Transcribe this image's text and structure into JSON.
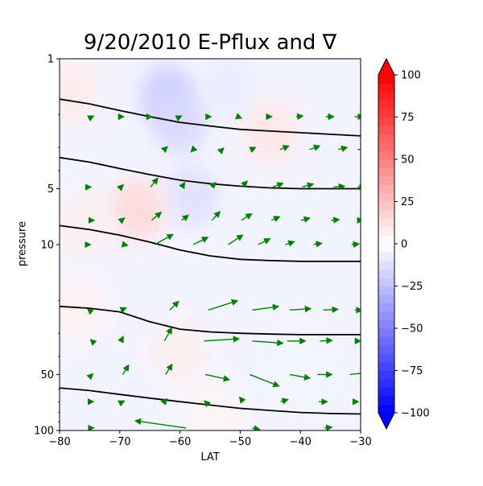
{
  "chart_data": {
    "type": "contour",
    "title": "9/20/2010 E-Pflux and ∇",
    "xlabel": "LAT",
    "ylabel": "pressure",
    "xlim": [
      -80,
      -30
    ],
    "ylim": [
      100,
      1
    ],
    "yscale": "log",
    "x_ticks": [
      -80,
      -70,
      -60,
      -50,
      -40,
      -30
    ],
    "x_tick_labels": [
      "−80",
      "−70",
      "−60",
      "−50",
      "−40",
      "−30"
    ],
    "y_ticks": [
      1,
      5,
      10,
      50,
      100
    ],
    "y_tick_labels": [
      "1",
      "5",
      "10",
      "50",
      "100"
    ],
    "colorbar": {
      "colormap": "bwr",
      "min": -100,
      "max": 100,
      "extend": "both",
      "ticks": [
        -100,
        -75,
        -50,
        -25,
        0,
        25,
        50,
        75,
        100
      ],
      "tick_labels": [
        "−100",
        "−75",
        "−50",
        "−25",
        "0",
        "25",
        "50",
        "75",
        "100"
      ]
    },
    "contour_field": [
      {
        "lat": -78,
        "p": 1.5,
        "value": 8
      },
      {
        "lat": -62,
        "p": 1.6,
        "value": -20
      },
      {
        "lat": -60,
        "p": 2.2,
        "value": -15
      },
      {
        "lat": -52,
        "p": 1.4,
        "value": -8
      },
      {
        "lat": -45,
        "p": 2.5,
        "value": 10
      },
      {
        "lat": -58,
        "p": 5.5,
        "value": -12
      },
      {
        "lat": -67,
        "p": 6.5,
        "value": 15
      },
      {
        "lat": -76,
        "p": 8.0,
        "value": 6
      },
      {
        "lat": -77,
        "p": 22,
        "value": 5
      },
      {
        "lat": -60,
        "p": 38,
        "value": 6
      },
      {
        "lat": -40,
        "p": 45,
        "value": -4
      },
      {
        "lat": -55,
        "p": 80,
        "value": 4
      }
    ],
    "contour_lines": [
      {
        "lat": [
          -80,
          -75,
          -70,
          -65,
          -60,
          -55,
          -50,
          -45,
          -40,
          -35,
          -30
        ],
        "p": [
          1.65,
          1.75,
          1.9,
          2.05,
          2.2,
          2.3,
          2.4,
          2.45,
          2.5,
          2.55,
          2.6
        ]
      },
      {
        "lat": [
          -80,
          -75,
          -70,
          -65,
          -60,
          -55,
          -50,
          -45,
          -40,
          -35,
          -30
        ],
        "p": [
          3.4,
          3.6,
          3.9,
          4.2,
          4.5,
          4.7,
          4.85,
          4.95,
          5.0,
          5.0,
          5.0
        ]
      },
      {
        "lat": [
          -80,
          -75,
          -70,
          -65,
          -60,
          -55,
          -50,
          -45,
          -40,
          -35,
          -30
        ],
        "p": [
          7.9,
          8.3,
          8.9,
          9.7,
          10.7,
          11.5,
          12.0,
          12.2,
          12.3,
          12.3,
          12.3
        ]
      },
      {
        "lat": [
          -80,
          -75,
          -70,
          -65,
          -60,
          -55,
          -50,
          -45,
          -40,
          -35,
          -30
        ],
        "p": [
          21.5,
          22.0,
          23.0,
          26.0,
          28.5,
          29.5,
          30.0,
          30.3,
          30.5,
          30.5,
          30.5
        ]
      },
      {
        "lat": [
          -80,
          -75,
          -70,
          -65,
          -60,
          -55,
          -50,
          -45,
          -40,
          -35,
          -30
        ],
        "p": [
          59.0,
          61.0,
          64.0,
          67.0,
          70.0,
          73.0,
          76.0,
          78.0,
          80.0,
          81.0,
          81.5
        ]
      }
    ],
    "vectors": [
      {
        "lat": -74.6,
        "p": 2.05,
        "u": 0.2,
        "v": 0.1
      },
      {
        "lat": -69.7,
        "p": 2.05,
        "u": 0.3,
        "v": 0.0
      },
      {
        "lat": -64.9,
        "p": 2.05,
        "u": 0.2,
        "v": 0.0
      },
      {
        "lat": -60.0,
        "p": 2.05,
        "u": 0.2,
        "v": 0.1
      },
      {
        "lat": -55.2,
        "p": 2.05,
        "u": 0.3,
        "v": 0.0
      },
      {
        "lat": -50.4,
        "p": 2.05,
        "u": 0.5,
        "v": -0.2
      },
      {
        "lat": -45.5,
        "p": 2.05,
        "u": 0.6,
        "v": 0.0
      },
      {
        "lat": -40.7,
        "p": 2.05,
        "u": 0.9,
        "v": 0.1
      },
      {
        "lat": -35.8,
        "p": 2.05,
        "u": 1.1,
        "v": 0.0
      },
      {
        "lat": -31.0,
        "p": 2.05,
        "u": 1.2,
        "v": 0.0
      },
      {
        "lat": -62.6,
        "p": 3.08,
        "u": 0.4,
        "v": 0.4
      },
      {
        "lat": -57.8,
        "p": 3.08,
        "u": -0.3,
        "v": -0.3
      },
      {
        "lat": -53.0,
        "p": 3.08,
        "u": 0.2,
        "v": 0.2
      },
      {
        "lat": -48.2,
        "p": 3.08,
        "u": 0.6,
        "v": 0.3
      },
      {
        "lat": -43.4,
        "p": 3.08,
        "u": 1.2,
        "v": 0.5
      },
      {
        "lat": -38.5,
        "p": 3.08,
        "u": 1.4,
        "v": 0.5
      },
      {
        "lat": -33.7,
        "p": 3.08,
        "u": 1.2,
        "v": 0.3
      },
      {
        "lat": -30.5,
        "p": 3.08,
        "u": 1.2,
        "v": 0.1
      },
      {
        "lat": -74.9,
        "p": 4.9,
        "u": 0.1,
        "v": 0.0
      },
      {
        "lat": -69.8,
        "p": 4.9,
        "u": 0.3,
        "v": 0.3
      },
      {
        "lat": -64.9,
        "p": 4.9,
        "u": 1.0,
        "v": 1.2
      },
      {
        "lat": -59.7,
        "p": 4.9,
        "u": 0.4,
        "v": 0.6
      },
      {
        "lat": -54.8,
        "p": 4.9,
        "u": 0.6,
        "v": 0.6
      },
      {
        "lat": -49.8,
        "p": 4.9,
        "u": 0.8,
        "v": 0.8
      },
      {
        "lat": -44.6,
        "p": 4.9,
        "u": 1.4,
        "v": 0.5
      },
      {
        "lat": -39.7,
        "p": 4.9,
        "u": 1.5,
        "v": 0.4
      },
      {
        "lat": -34.5,
        "p": 4.9,
        "u": 1.5,
        "v": 0.1
      },
      {
        "lat": -30.5,
        "p": 4.9,
        "u": 1.0,
        "v": 0.0
      },
      {
        "lat": -74.5,
        "p": 7.4,
        "u": 0.2,
        "v": 0.0
      },
      {
        "lat": -69.7,
        "p": 7.4,
        "u": 0.4,
        "v": 0.3
      },
      {
        "lat": -64.7,
        "p": 7.4,
        "u": 1.3,
        "v": 1.1
      },
      {
        "lat": -59.7,
        "p": 7.4,
        "u": 0.9,
        "v": 0.7
      },
      {
        "lat": -54.7,
        "p": 7.4,
        "u": 1.1,
        "v": 1.2
      },
      {
        "lat": -49.8,
        "p": 7.4,
        "u": 1.4,
        "v": 0.9
      },
      {
        "lat": -44.8,
        "p": 7.4,
        "u": 1.1,
        "v": 0.5
      },
      {
        "lat": -39.9,
        "p": 7.4,
        "u": 1.2,
        "v": 0.3
      },
      {
        "lat": -34.9,
        "p": 7.4,
        "u": 1.1,
        "v": 0.1
      },
      {
        "lat": -30.5,
        "p": 7.4,
        "u": 0.7,
        "v": 0.0
      },
      {
        "lat": -75.0,
        "p": 10.0,
        "u": 0.1,
        "v": 0.0
      },
      {
        "lat": -69.3,
        "p": 10.0,
        "u": 0.5,
        "v": -0.1
      },
      {
        "lat": -64.2,
        "p": 10.0,
        "u": 2.5,
        "v": 1.4
      },
      {
        "lat": -57.8,
        "p": 10.0,
        "u": 2.0,
        "v": 1.0
      },
      {
        "lat": -52.0,
        "p": 10.0,
        "u": 2.0,
        "v": 1.3
      },
      {
        "lat": -47.0,
        "p": 10.0,
        "u": 1.6,
        "v": 0.8
      },
      {
        "lat": -42.5,
        "p": 10.0,
        "u": 1.2,
        "v": 0.4
      },
      {
        "lat": -37.8,
        "p": 10.0,
        "u": 1.1,
        "v": 0.2
      },
      {
        "lat": -31.5,
        "p": 10.0,
        "u": 1.0,
        "v": 0.1
      },
      {
        "lat": -74.6,
        "p": 22.5,
        "u": 0.2,
        "v": 0.1
      },
      {
        "lat": -69.8,
        "p": 22.5,
        "u": 0.7,
        "v": 0.3
      },
      {
        "lat": -61.7,
        "p": 22.5,
        "u": 1.2,
        "v": 1.2
      },
      {
        "lat": -55.3,
        "p": 22.5,
        "u": 4.0,
        "v": 1.3
      },
      {
        "lat": -48.0,
        "p": 22.5,
        "u": 3.6,
        "v": 0.5
      },
      {
        "lat": -41.8,
        "p": 22.5,
        "u": 2.9,
        "v": 0.2
      },
      {
        "lat": -36.2,
        "p": 22.5,
        "u": 2.0,
        "v": 0.1
      },
      {
        "lat": -31.0,
        "p": 22.5,
        "u": 1.0,
        "v": 0.0
      },
      {
        "lat": -74.6,
        "p": 33.0,
        "u": -0.2,
        "v": 0.2
      },
      {
        "lat": -69.8,
        "p": 33.0,
        "u": 0.3,
        "v": 0.6
      },
      {
        "lat": -62.6,
        "p": 33.0,
        "u": 1.0,
        "v": 1.8
      },
      {
        "lat": -56.0,
        "p": 33.0,
        "u": 4.8,
        "v": 0.3
      },
      {
        "lat": -48.0,
        "p": 33.0,
        "u": 4.2,
        "v": -0.3
      },
      {
        "lat": -42.2,
        "p": 33.0,
        "u": 2.5,
        "v": 0.0
      },
      {
        "lat": -36.8,
        "p": 33.0,
        "u": 1.7,
        "v": 0.1
      },
      {
        "lat": -31.0,
        "p": 33.0,
        "u": 0.8,
        "v": 0.0
      },
      {
        "lat": -74.6,
        "p": 50.0,
        "u": 0.1,
        "v": 0.1
      },
      {
        "lat": -69.5,
        "p": 50.0,
        "u": 0.8,
        "v": 1.3
      },
      {
        "lat": -62.4,
        "p": 50.0,
        "u": 0.9,
        "v": 1.4
      },
      {
        "lat": -55.8,
        "p": 50.0,
        "u": 3.3,
        "v": -0.7
      },
      {
        "lat": -48.4,
        "p": 50.0,
        "u": 4.0,
        "v": -1.6
      },
      {
        "lat": -41.8,
        "p": 50.0,
        "u": 2.8,
        "v": -0.5
      },
      {
        "lat": -37.2,
        "p": 50.0,
        "u": 2.0,
        "v": 0.0
      },
      {
        "lat": -31.8,
        "p": 50.0,
        "u": 2.6,
        "v": 0.3
      },
      {
        "lat": -74.5,
        "p": 70.0,
        "u": 0.1,
        "v": 0.0
      },
      {
        "lat": -69.5,
        "p": 70.0,
        "u": 0.2,
        "v": 0.1
      },
      {
        "lat": -62.6,
        "p": 70.0,
        "u": 0.3,
        "v": 0.4
      },
      {
        "lat": -55.8,
        "p": 70.0,
        "u": -0.1,
        "v": 0.1
      },
      {
        "lat": -49.5,
        "p": 70.0,
        "u": -0.5,
        "v": 0.6
      },
      {
        "lat": -43.3,
        "p": 70.0,
        "u": 1.0,
        "v": 0.3
      },
      {
        "lat": -37.0,
        "p": 70.0,
        "u": 1.2,
        "v": 0.0
      },
      {
        "lat": -31.0,
        "p": 70.0,
        "u": 0.5,
        "v": 0.0
      },
      {
        "lat": -74.7,
        "p": 97.0,
        "u": 0.3,
        "v": 0.0
      },
      {
        "lat": -59.0,
        "p": 97.0,
        "u": -7.0,
        "v": 1.0
      },
      {
        "lat": -48.0,
        "p": 97.0,
        "u": 1.0,
        "v": -0.2
      },
      {
        "lat": -36.0,
        "p": 97.0,
        "u": 1.0,
        "v": 0.1
      }
    ]
  }
}
